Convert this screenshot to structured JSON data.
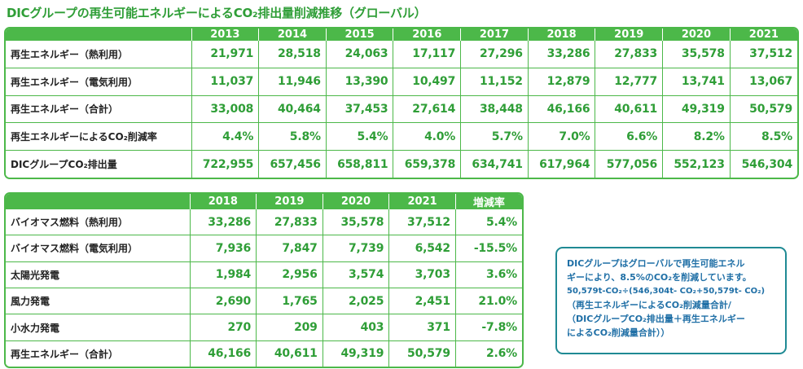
{
  "title": "DICグループの再生可能エネルギーによるCO₂排出量削減推移（グローバル）",
  "table1": {
    "columns": [
      "",
      "2013",
      "2014",
      "2015",
      "2016",
      "2017",
      "2018",
      "2019",
      "2020",
      "2021"
    ],
    "rows": [
      {
        "label": "再生エネルギー（熱利用）",
        "values": [
          "21,971",
          "28,518",
          "24,063",
          "17,117",
          "27,296",
          "33,286",
          "27,833",
          "35,578",
          "37,512"
        ]
      },
      {
        "label": "再生エネルギー（電気利用）",
        "values": [
          "11,037",
          "11,946",
          "13,390",
          "10,497",
          "11,152",
          "12,879",
          "12,777",
          "13,741",
          "13,067"
        ]
      },
      {
        "label": "再生エネルギー（合計）",
        "values": [
          "33,008",
          "40,464",
          "37,453",
          "27,614",
          "38,448",
          "46,166",
          "40,611",
          "49,319",
          "50,579"
        ]
      },
      {
        "label": "再生エネルギーによるCO₂削減率",
        "values": [
          "4.4%",
          "5.8%",
          "5.4%",
          "4.0%",
          "5.7%",
          "7.0%",
          "6.6%",
          "8.2%",
          "8.5%"
        ]
      },
      {
        "label": "DICグループCO₂排出量",
        "values": [
          "722,955",
          "657,456",
          "658,811",
          "659,378",
          "634,741",
          "617,964",
          "577,056",
          "552,123",
          "546,304"
        ]
      }
    ]
  },
  "table2": {
    "columns": [
      "",
      "2018",
      "2019",
      "2020",
      "2021",
      "増減率"
    ],
    "rows": [
      {
        "label": "バイオマス燃料（熱利用）",
        "values": [
          "33,286",
          "27,833",
          "35,578",
          "37,512",
          "5.4%"
        ]
      },
      {
        "label": "バイオマス燃料（電気利用）",
        "values": [
          "7,936",
          "7,847",
          "7,739",
          "6,542",
          "-15.5%"
        ]
      },
      {
        "label": "太陽光発電",
        "values": [
          "1,984",
          "2,956",
          "3,574",
          "3,703",
          "3.6%"
        ]
      },
      {
        "label": "風力発電",
        "values": [
          "2,690",
          "1,765",
          "2,025",
          "2,451",
          "21.0%"
        ]
      },
      {
        "label": "小水力発電",
        "values": [
          "270",
          "209",
          "403",
          "371",
          "-7.8%"
        ]
      },
      {
        "label": "再生エネルギー（合計）",
        "values": [
          "46,166",
          "40,611",
          "49,319",
          "50,579",
          "2.6%"
        ]
      }
    ]
  },
  "note": {
    "lines": [
      "DICグループはグローバルで再生可能エネル",
      "ギーにより、8.5%のCO₂を削減しています。",
      "50,579t-CO₂÷(546,304t- CO₂+50,579t- CO₂)",
      "（再生エネルギーによるCO₂削減量合計/",
      "（DICグループCO₂排出量＋再生エネルギー",
      "によるCO₂削減量合計））"
    ]
  }
}
